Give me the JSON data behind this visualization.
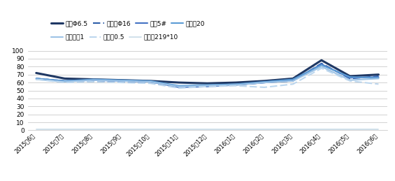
{
  "x_labels": [
    "2015年6月",
    "2015年7月",
    "2015年8月",
    "2015年9月",
    "2015年10月",
    "2015年11月",
    "2015年12月",
    "2016年1月",
    "2016年2月",
    "2016年3月",
    "2016年4月",
    "2016年5月",
    "2016年6月"
  ],
  "series": [
    {
      "name": "高线Φ6.5",
      "color": "#1F3864",
      "linewidth": 2.2,
      "linestyle": "solid",
      "values": [
        72,
        65,
        64,
        63,
        62,
        60,
        59,
        60,
        62,
        65,
        88,
        68,
        70
      ]
    },
    {
      "name": "螺纹钢Φ16",
      "color": "#2E5EA8",
      "linewidth": 1.5,
      "linestyle": "dashed",
      "values": [
        65,
        62,
        62,
        61,
        60,
        54,
        56,
        57,
        60,
        62,
        84,
        65,
        68
      ]
    },
    {
      "name": "角钢5#",
      "color": "#4472C4",
      "linewidth": 1.5,
      "linestyle": "solid",
      "values": [
        65,
        62,
        63,
        62,
        61,
        54,
        55,
        57,
        60,
        63,
        83,
        66,
        67
      ]
    },
    {
      "name": "中厚板20",
      "color": "#5B9BD5",
      "linewidth": 1.5,
      "linestyle": "solid",
      "values": [
        65,
        62,
        64,
        63,
        62,
        56,
        57,
        58,
        61,
        64,
        82,
        67,
        66
      ]
    },
    {
      "name": "热轧卷板1",
      "color": "#9DC3E6",
      "linewidth": 1.5,
      "linestyle": "solid",
      "values": [
        64,
        61,
        63,
        62,
        61,
        55,
        56,
        57,
        60,
        62,
        80,
        63,
        65
      ]
    },
    {
      "name": "镀锌板0.5",
      "color": "#BDD7EE",
      "linewidth": 1.5,
      "linestyle": "dashed",
      "values": [
        64,
        60,
        61,
        60,
        59,
        53,
        55,
        56,
        54,
        58,
        78,
        62,
        58
      ]
    },
    {
      "name": "无缝管219*10",
      "color": "#C8DCE8",
      "linewidth": 1.2,
      "linestyle": "solid",
      "values": [
        1,
        1,
        1,
        1,
        1,
        1,
        1,
        1,
        1,
        1,
        1,
        1,
        1
      ]
    }
  ],
  "ylim": [
    0,
    100
  ],
  "yticks": [
    0,
    10,
    20,
    30,
    40,
    50,
    60,
    70,
    80,
    90,
    100
  ],
  "grid_color": "#C0C0C0",
  "bg_color": "#FFFFFF",
  "figsize": [
    5.65,
    2.59
  ],
  "dpi": 100
}
